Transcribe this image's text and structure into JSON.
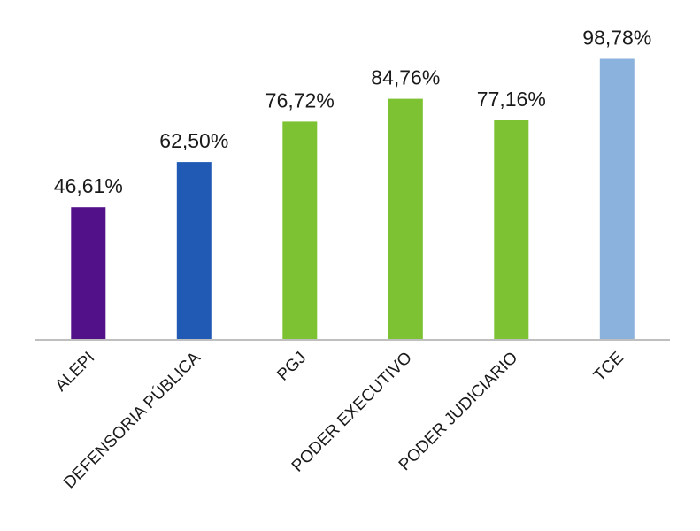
{
  "chart_data": {
    "type": "bar",
    "categories": [
      "ALEPI",
      "DEFENSORIA PÚBLICA",
      "PGJ",
      "PODER EXECUTIVO",
      "PODER JUDICIARIO",
      "TCE"
    ],
    "values": [
      46.61,
      62.5,
      76.72,
      84.76,
      77.16,
      98.78
    ],
    "value_labels": [
      "46,61%",
      "62,50%",
      "76,72%",
      "84,76%",
      "77,16%",
      "98,78%"
    ],
    "colors": [
      "#521089",
      "#215ab4",
      "#7dc232",
      "#7dc232",
      "#7dc232",
      "#8bb2dc"
    ],
    "axis_color": "#bfbfbf",
    "ylim": [
      0,
      100
    ],
    "grid": false,
    "legend": "none",
    "title": "",
    "xlabel": "",
    "ylabel": ""
  }
}
